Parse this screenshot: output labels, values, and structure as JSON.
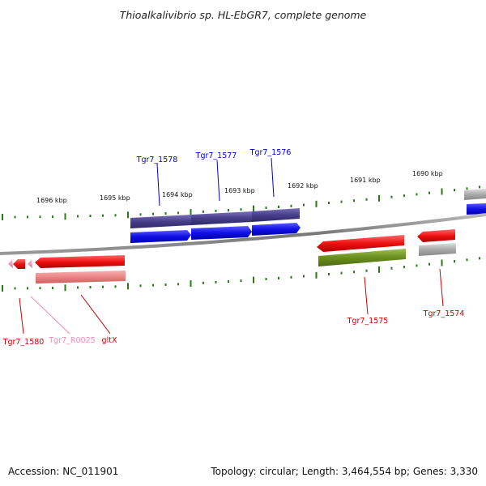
{
  "title": "Thioalkalivibrio sp. HL-EbGR7, complete genome",
  "footer": {
    "accession": "Accession: NC_011901",
    "topology": "Topology: circular; Length: 3,464,554 bp; Genes: 3,330"
  },
  "axis_ticks": [
    "1696 kbp",
    "1695 kbp",
    "1694 kbp",
    "1693 kbp",
    "1692 kbp",
    "1691 kbp",
    "1690 kbp"
  ],
  "genes_top": [
    "Tgr7_1578",
    "Tgr7_1577",
    "Tgr7_1576"
  ],
  "genes_bottom": [
    "Tgr7_1580",
    "Tgr7_R0025",
    "gltX",
    "Tgr7_1575",
    "Tgr7_1574"
  ],
  "colors": {
    "forward_cds": "#1010e0",
    "forward_gene": "#48408a",
    "reverse_cds": "#ee1111",
    "reverse_gene": "#ee8888",
    "trna": "#f08ab8",
    "olive": "#6b8f1f",
    "grey_gene": "#aaaaaa",
    "tick": "#2a7a1a",
    "backbone": "#888888"
  }
}
